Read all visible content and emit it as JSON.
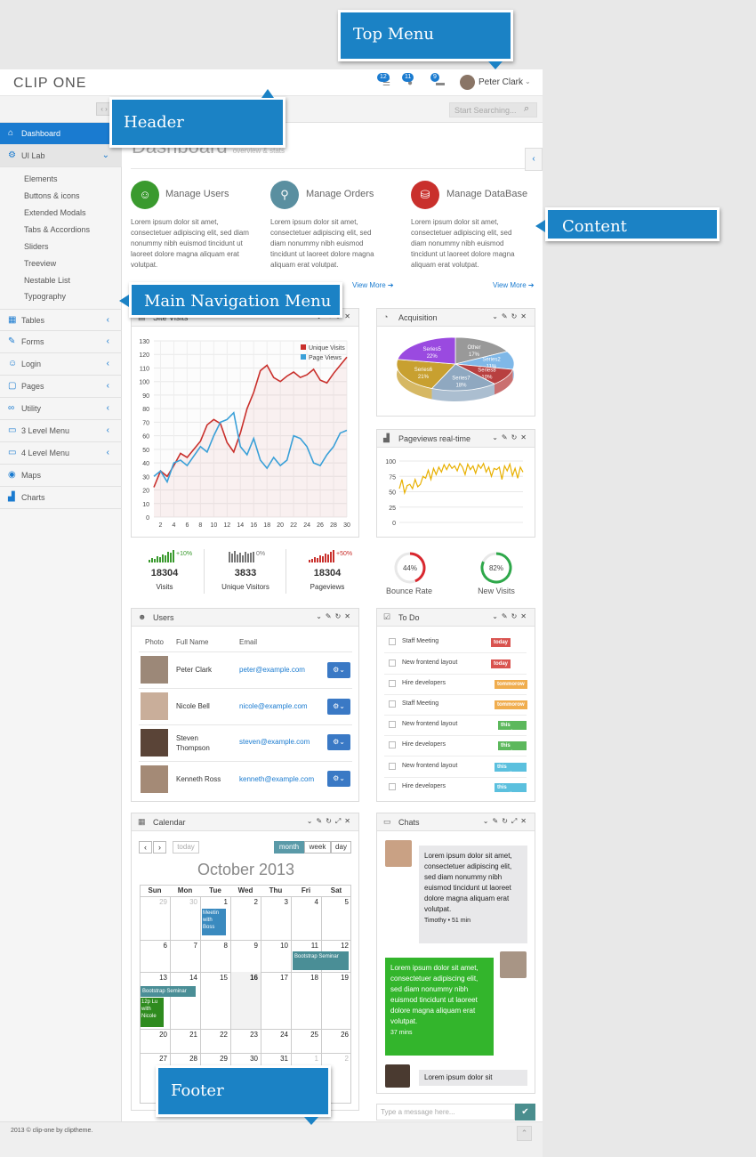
{
  "brand": {
    "logo": "CLIP ONE"
  },
  "top_menu": {
    "badges": [
      "12",
      "11",
      "9"
    ],
    "user": "Peter Clark"
  },
  "search": {
    "placeholder": "Start Searching..."
  },
  "sidebar": {
    "items": [
      {
        "label": "Dashboard",
        "icon": "home-icon"
      },
      {
        "label": "UI Lab",
        "icon": "gear-icon"
      },
      {
        "label": "Tables",
        "icon": "table-icon"
      },
      {
        "label": "Forms",
        "icon": "edit-icon"
      },
      {
        "label": "Login",
        "icon": "user-icon"
      },
      {
        "label": "Pages",
        "icon": "file-icon"
      },
      {
        "label": "Utility",
        "icon": "link-icon"
      },
      {
        "label": "3 Level Menu",
        "icon": "folder-icon"
      },
      {
        "label": "4 Level Menu",
        "icon": "folder-icon"
      },
      {
        "label": "Maps",
        "icon": "map-marker-icon"
      },
      {
        "label": "Charts",
        "icon": "bar-chart-icon"
      }
    ],
    "sub_items": [
      "Elements",
      "Buttons & icons",
      "Extended Modals",
      "Tabs & Accordions",
      "Sliders",
      "Treeview",
      "Nestable List",
      "Typography"
    ]
  },
  "page": {
    "title": "Dashboard",
    "subtitle": "overview & stats"
  },
  "features": [
    {
      "title": "Manage Users",
      "text": "Lorem ipsum dolor sit amet, consectetuer adipiscing elit, sed diam nonummy nibh euismod tincidunt ut laoreet dolore magna aliquam erat volutpat.",
      "color": "#3a9a2e"
    },
    {
      "title": "Manage Orders",
      "text": "Lorem ipsum dolor sit amet, consectetuer adipiscing elit, sed diam nonummy nibh euismod tincidunt ut laoreet dolore magna aliquam erat volutpat.",
      "color": "#5a8fa0"
    },
    {
      "title": "Manage DataBase",
      "text": "Lorem ipsum dolor sit amet, consectetuer adipiscing elit, sed diam nonummy nibh euismod tincidunt ut laoreet dolore magna aliquam erat volutpat.",
      "color": "#c9302c"
    }
  ],
  "view_more": "View More",
  "callouts": {
    "top_menu": "Top Menu",
    "header": "Header",
    "content": "Content",
    "main_nav": "Main Navigation Menu",
    "footer": "Footer"
  },
  "panels": {
    "site_visits": "Site Visits",
    "acquisition": "Acquisition",
    "pageviews": "Pageviews real-time",
    "users": "Users",
    "todo": "To Do",
    "calendar": "Calendar",
    "chats": "Chats"
  },
  "chart_data": [
    {
      "type": "line",
      "x": [
        1,
        2,
        3,
        4,
        5,
        6,
        7,
        8,
        9,
        10,
        11,
        12,
        13,
        14,
        15,
        16,
        17,
        18,
        19,
        20,
        21,
        22,
        23,
        24,
        25,
        26,
        27,
        28,
        29,
        30
      ],
      "series": [
        {
          "name": "Unique Visits",
          "color": "#c9302c",
          "values": [
            22,
            34,
            30,
            38,
            47,
            44,
            50,
            56,
            68,
            72,
            69,
            55,
            48,
            62,
            80,
            92,
            108,
            112,
            103,
            100,
            104,
            107,
            103,
            105,
            109,
            101,
            99,
            106,
            112,
            118
          ]
        },
        {
          "name": "Page Views",
          "color": "#3aa0d8",
          "values": [
            30,
            34,
            26,
            40,
            42,
            38,
            45,
            52,
            48,
            60,
            70,
            72,
            77,
            52,
            46,
            58,
            42,
            36,
            44,
            38,
            42,
            60,
            58,
            52,
            40,
            38,
            46,
            52,
            62,
            64
          ]
        }
      ],
      "xticks": [
        "2",
        "4",
        "6",
        "8",
        "10",
        "12",
        "14",
        "16",
        "18",
        "20",
        "22",
        "24",
        "26",
        "28",
        "30"
      ],
      "yticks": [
        "0",
        "10",
        "20",
        "30",
        "40",
        "50",
        "60",
        "70",
        "80",
        "90",
        "100",
        "110",
        "120",
        "130"
      ],
      "ylim": [
        0,
        130
      ],
      "legend": "top-right",
      "grid": true
    },
    {
      "type": "pie",
      "categories": [
        "Other",
        "Series2",
        "Series8",
        "Series7",
        "Series6",
        "Series5"
      ],
      "values": [
        17,
        11,
        10,
        18,
        21,
        22
      ],
      "colors": [
        "#999999",
        "#7fb8e8",
        "#b84040",
        "#8fa8c0",
        "#c8a030",
        "#9a4ae0"
      ]
    },
    {
      "type": "line",
      "yticks": [
        "0",
        "25",
        "50",
        "75",
        "100"
      ],
      "ylim": [
        0,
        100
      ],
      "series": [
        {
          "color": "#e8b000",
          "values": [
            55,
            70,
            48,
            60,
            62,
            55,
            70,
            58,
            62,
            75,
            72,
            85,
            70,
            88,
            78,
            90,
            82,
            94,
            86,
            95,
            88,
            92,
            84,
            96,
            90,
            78,
            95,
            86,
            92,
            80,
            94,
            88,
            96,
            82,
            90,
            75,
            88,
            86,
            90,
            70,
            92,
            84,
            95,
            76,
            88,
            72,
            90,
            82
          ]
        }
      ]
    }
  ],
  "stats": [
    {
      "value": "18304",
      "label": "Visits",
      "pct": "+10%",
      "pct_color": "#3a9a2e",
      "bar_color": "#3a9a2e"
    },
    {
      "value": "3833",
      "label": "Unique Visitors",
      "pct": "0%",
      "pct_color": "#777777",
      "bar_color": "#777777"
    },
    {
      "value": "18304",
      "label": "Pageviews",
      "pct": "+50%",
      "pct_color": "#c9302c",
      "bar_color": "#c9302c"
    }
  ],
  "gauges": [
    {
      "value": "44%",
      "label": "Bounce Rate",
      "fraction": 0.44,
      "color": "#d9282f"
    },
    {
      "value": "82%",
      "label": "New Visits",
      "fraction": 0.82,
      "color": "#2ea84a"
    }
  ],
  "users": {
    "headers": [
      "Photo",
      "Full Name",
      "Email"
    ],
    "rows": [
      {
        "name": "Peter Clark",
        "email": "peter@example.com"
      },
      {
        "name": "Nicole Bell",
        "email": "nicole@example.com"
      },
      {
        "name": "Steven Thompson",
        "email": "steven@example.com"
      },
      {
        "name": "Kenneth Ross",
        "email": "kenneth@example.com"
      }
    ]
  },
  "todos": [
    {
      "text": "Staff Meeting",
      "tag": "today",
      "color": "#d9534f"
    },
    {
      "text": "New frontend layout",
      "tag": "today",
      "color": "#d9534f"
    },
    {
      "text": "Hire developers",
      "tag": "tommorow",
      "color": "#f0ad4e"
    },
    {
      "text": "Staff Meeting",
      "tag": "tommorow",
      "color": "#f0ad4e"
    },
    {
      "text": "New frontend layout",
      "tag": "this week",
      "color": "#5cb85c"
    },
    {
      "text": "Hire developers",
      "tag": "this week",
      "color": "#5cb85c"
    },
    {
      "text": "New frontend layout",
      "tag": "this month",
      "color": "#5bc0de"
    },
    {
      "text": "Hire developers",
      "tag": "this month",
      "color": "#5bc0de"
    }
  ],
  "calendar": {
    "month": "October 2013",
    "today": "today",
    "views": [
      "month",
      "week",
      "day"
    ],
    "days": [
      "Sun",
      "Mon",
      "Tue",
      "Wed",
      "Thu",
      "Fri",
      "Sat"
    ],
    "weeks": [
      [
        "29",
        "30",
        "1",
        "2",
        "3",
        "4",
        "5"
      ],
      [
        "6",
        "7",
        "8",
        "9",
        "10",
        "11",
        "12"
      ],
      [
        "13",
        "14",
        "15",
        "16",
        "17",
        "18",
        "19"
      ],
      [
        "20",
        "21",
        "22",
        "23",
        "24",
        "25",
        "26"
      ],
      [
        "27",
        "28",
        "29",
        "30",
        "31",
        "1",
        "2"
      ]
    ],
    "events": [
      "Meetin with Boss",
      "Bootstrap Seminar",
      "Bootstrap Seminar",
      "12p Lu with Nicole"
    ]
  },
  "chats": [
    {
      "text": "Lorem ipsum dolor sit amet, consectetuer adipiscing elit, sed diam nonummy nibh euismod tincidunt ut laoreet dolore magna aliquam erat volutpat.",
      "meta": "Timothy • 51 min"
    },
    {
      "text": "Lorem ipsum dolor sit amet, consectetuer adipiscing elit, sed diam nonummy nibh euismod tincidunt ut laoreet dolore magna aliquam erat volutpat.",
      "meta": "37 mins"
    },
    {
      "text": "Lorem ipsum dolor sit"
    }
  ],
  "chat_input": {
    "placeholder": "Type a message here..."
  },
  "footer": {
    "copyright": "2013 © clip-one by cliptheme."
  }
}
